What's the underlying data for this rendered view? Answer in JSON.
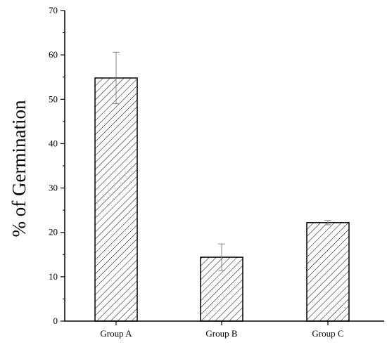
{
  "chart_data": {
    "type": "bar",
    "title": "",
    "xlabel": "",
    "ylabel": "% of Germination",
    "categories": [
      "Group A",
      "Group B",
      "Group C"
    ],
    "values": [
      54.8,
      14.4,
      22.2
    ],
    "error": [
      5.8,
      3.0,
      0.5
    ],
    "ylim": [
      0,
      70
    ],
    "yticks": [
      "0",
      "10",
      "20",
      "30",
      "40",
      "50",
      "60",
      "70"
    ],
    "grid": false,
    "legend": "none",
    "bar_fill": "diagonal-hatch",
    "colors": {
      "bar_stroke": "#000000",
      "hatch": "#000000",
      "error_bar": "#888888",
      "axis": "#000000"
    }
  }
}
